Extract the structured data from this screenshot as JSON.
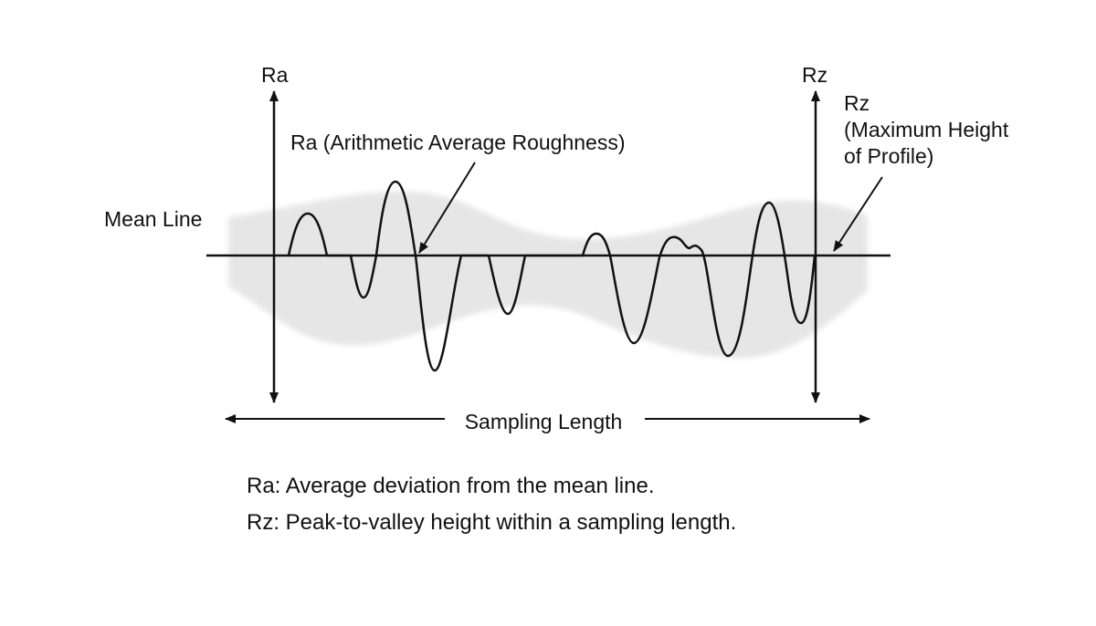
{
  "diagram": {
    "axis_left_label": "Ra",
    "axis_right_label": "Rz",
    "ra_callout": "Ra (Arithmetic Average Roughness)",
    "rz_callout_lines": [
      "Rz",
      "(Maximum Height",
      "of Profile)"
    ],
    "mean_line_label": "Mean Line",
    "sampling_length_label": "Sampling Length",
    "legend": [
      "Ra: Average deviation from the mean line.",
      "Rz: Peak-to-valley height within a sampling length."
    ],
    "colors": {
      "ink": "#111111",
      "band": "#e6e6e6",
      "background": "#ffffff"
    }
  }
}
